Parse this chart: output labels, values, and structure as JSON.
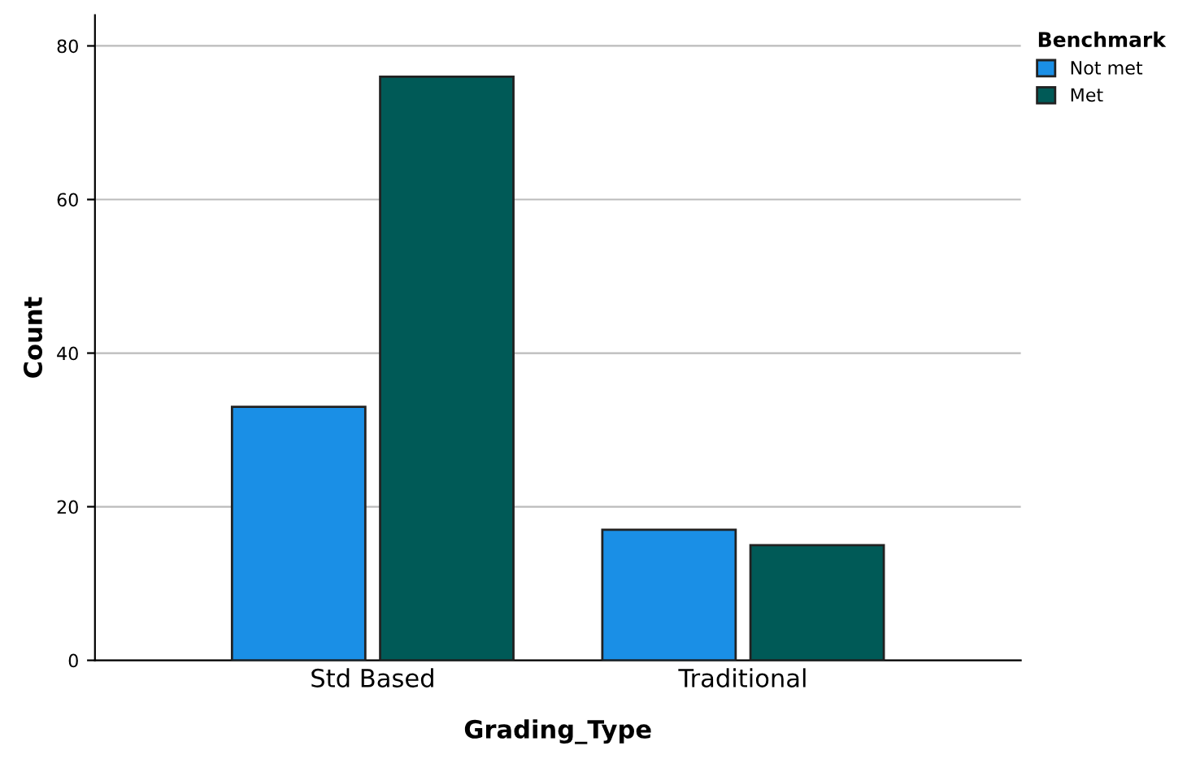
{
  "chart_data": {
    "type": "bar",
    "xlabel": "Grading_Type",
    "ylabel": "Count",
    "legend_title": "Benchmark",
    "categories": [
      "Std Based",
      "Traditional"
    ],
    "series": [
      {
        "name": "Not met",
        "color": "#1a8fe6",
        "values": [
          33,
          17
        ]
      },
      {
        "name": "Met",
        "color": "#005a57",
        "values": [
          76,
          15
        ]
      }
    ],
    "ylim": [
      0,
      84
    ],
    "yticks": [
      0,
      20,
      40,
      60,
      80
    ],
    "grid": "y",
    "legend": "top right"
  }
}
